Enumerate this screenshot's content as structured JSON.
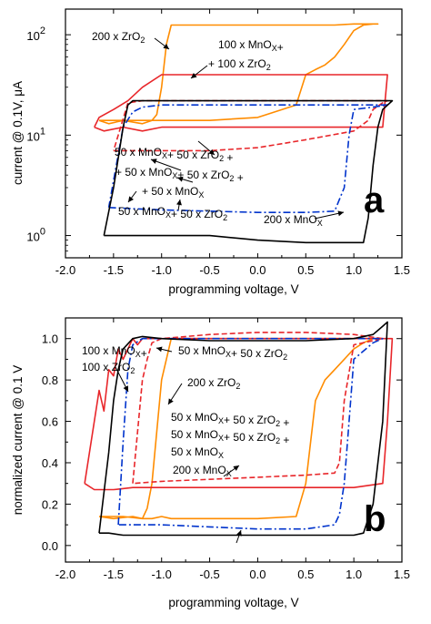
{
  "chart_data": [
    {
      "type": "line",
      "panel_label": "a",
      "xlabel": "programming voltage, V",
      "ylabel": "current @ 0.1V, μA",
      "xlim": [
        -2.0,
        1.5
      ],
      "ylim": [
        0.6,
        180
      ],
      "yscale": "log",
      "x_tick_labels": [
        "-2.0",
        "-1.5",
        "-1.0",
        "-0.5",
        "0.0",
        "0.5",
        "1.0",
        "1.5"
      ],
      "x_ticks": [
        -2.0,
        -1.5,
        -1.0,
        -0.5,
        0.0,
        0.5,
        1.0,
        1.5
      ],
      "y_tick_labels": [
        {
          "base": "10",
          "exp": "0"
        },
        {
          "base": "10",
          "exp": "1"
        },
        {
          "base": "10",
          "exp": "2"
        }
      ],
      "y_ticks": [
        1,
        10,
        100
      ],
      "series": [
        {
          "color": "#ff8c00",
          "style": "solid",
          "x": [
            -1.65,
            -1.55,
            -1.4,
            -1.2,
            -1.1,
            -1.05,
            -1.0,
            -0.95,
            -0.9,
            -0.5,
            0.0,
            0.3,
            0.45,
            0.5,
            0.55,
            0.6,
            0.8,
            1.0,
            1.2,
            1.25,
            1.2,
            1.1,
            1.0,
            0.9,
            0.8,
            0.7,
            0.6,
            0.5,
            0.4,
            0.0,
            -0.5,
            -0.9,
            -1.0,
            -1.1,
            -1.3,
            -1.55,
            -1.65
          ],
          "y": [
            14,
            13,
            14,
            13,
            14,
            16,
            30,
            80,
            125,
            125,
            125,
            125,
            125,
            125,
            125,
            125,
            125,
            128,
            128,
            128,
            128,
            125,
            110,
            80,
            60,
            50,
            45,
            40,
            20,
            15,
            14,
            14,
            14,
            14,
            14,
            14,
            14
          ]
        },
        {
          "color": "#e8262a",
          "style": "solid",
          "x": [
            -1.7,
            -1.6,
            -1.4,
            -1.2,
            -1.0,
            -0.5,
            0.0,
            0.5,
            1.0,
            1.3,
            1.35,
            1.3,
            1.0,
            0.5,
            0.4,
            0.2,
            0.0,
            -0.5,
            -1.0,
            -1.2,
            -1.35,
            -1.5,
            -1.65,
            -1.7
          ],
          "y": [
            12,
            11,
            12,
            11,
            12,
            12,
            12,
            12,
            12,
            12,
            40,
            40,
            40,
            40,
            40,
            40,
            40,
            40,
            40,
            30,
            22,
            18,
            15,
            12
          ]
        },
        {
          "color": "#e8262a",
          "style": "dashed",
          "x": [
            -1.5,
            -1.3,
            -1.0,
            -0.5,
            0.0,
            0.5,
            1.0,
            1.15,
            1.2,
            1.3,
            1.35,
            1.0,
            0.5,
            0.0,
            -0.5,
            -1.0,
            -1.2,
            -1.35,
            -1.5
          ],
          "y": [
            7,
            7,
            7,
            7,
            7.5,
            9,
            11,
            14,
            18,
            21,
            22,
            22,
            22,
            22,
            22,
            22,
            22,
            21,
            7
          ]
        },
        {
          "color": "#0033cc",
          "style": "dashdot",
          "x": [
            -1.55,
            -1.3,
            -1.0,
            -0.5,
            0.0,
            0.5,
            0.8,
            0.9,
            0.95,
            1.0,
            1.2,
            1.35,
            1.0,
            0.5,
            0.0,
            -0.5,
            -1.0,
            -1.2,
            -1.3,
            -1.4,
            -1.55
          ],
          "y": [
            1.9,
            1.85,
            1.8,
            1.75,
            1.7,
            1.7,
            1.75,
            3,
            10,
            18,
            19,
            20,
            20,
            20,
            20,
            20,
            20,
            19,
            17,
            12,
            1.9
          ]
        },
        {
          "color": "#000000",
          "style": "solid",
          "x": [
            -1.6,
            -1.5,
            -1.4,
            -1.3,
            -1.2,
            -1.0,
            -0.5,
            0.0,
            0.5,
            1.0,
            1.1,
            1.15,
            1.2,
            1.25,
            1.3,
            1.4,
            1.2,
            1.0,
            0.5,
            0.0,
            -0.5,
            -1.0,
            -1.2,
            -1.3,
            -1.35,
            -1.4,
            -1.5,
            -1.6
          ],
          "y": [
            1.0,
            1.0,
            1.0,
            1.0,
            1.0,
            1.0,
            1.0,
            0.9,
            0.85,
            0.85,
            0.85,
            1.5,
            5,
            12,
            18,
            22,
            22,
            22,
            22,
            22,
            22,
            22,
            22,
            22,
            20,
            12,
            3,
            1.0
          ]
        }
      ],
      "annotations": [
        {
          "parts": [
            {
              "t": "200 x ZrO"
            },
            {
              "t": "2",
              "sub": true
            }
          ],
          "text": "200 x ZrO2"
        },
        {
          "parts": [
            {
              "t": "100 x MnO"
            },
            {
              "t": "X",
              "sub": true
            },
            {
              "t": "+"
            }
          ],
          "text": "100 x MnOX+"
        },
        {
          "parts": [
            {
              "t": "+ 100 x ZrO"
            },
            {
              "t": "2",
              "sub": true
            }
          ],
          "text": "+ 100 x ZrO2"
        },
        {
          "parts": [
            {
              "t": "50 x MnO"
            },
            {
              "t": "X",
              "sub": true
            },
            {
              "t": "+ 50 x ZrO"
            },
            {
              "t": "2",
              "sub": true
            },
            {
              "t": " +"
            }
          ],
          "text": "50 x MnOX+ 50 x ZrO2 +"
        },
        {
          "parts": [
            {
              "t": "+ 50 x MnO"
            },
            {
              "t": "X",
              "sub": true
            },
            {
              "t": "+ 50 x ZrO"
            },
            {
              "t": "2",
              "sub": true
            },
            {
              "t": " +"
            }
          ],
          "text": "+ 50 x MnOX+ 50 x ZrO2 +"
        },
        {
          "parts": [
            {
              "t": "+ 50 x MnO"
            },
            {
              "t": "X",
              "sub": true
            }
          ],
          "text": "+ 50 x MnOX"
        },
        {
          "parts": [
            {
              "t": "50 x MnO"
            },
            {
              "t": "X",
              "sub": true
            },
            {
              "t": "+ 50 x ZrO"
            },
            {
              "t": "2",
              "sub": true
            }
          ],
          "text": "50 x MnOX+ 50 x ZrO2"
        },
        {
          "parts": [
            {
              "t": "200 x MnO"
            },
            {
              "t": "X",
              "sub": true
            }
          ],
          "text": "200 x MnOX"
        }
      ]
    },
    {
      "type": "line",
      "panel_label": "b",
      "xlabel": "programming voltage, V",
      "ylabel": "normalized current @ 0.1 V",
      "xlim": [
        -2.0,
        1.5
      ],
      "ylim": [
        -0.08,
        1.1
      ],
      "yscale": "linear",
      "x_tick_labels": [
        "-2.0",
        "-1.5",
        "-1.0",
        "-0.5",
        "0.0",
        "0.5",
        "1.0",
        "1.5"
      ],
      "x_ticks": [
        -2.0,
        -1.5,
        -1.0,
        -0.5,
        0.0,
        0.5,
        1.0,
        1.5
      ],
      "y_tick_labels": [
        "0.0",
        "0.2",
        "0.4",
        "0.6",
        "0.8",
        "1.0"
      ],
      "y_ticks": [
        0.0,
        0.2,
        0.4,
        0.6,
        0.8,
        1.0
      ],
      "series": [
        {
          "color": "#ff8c00",
          "style": "solid",
          "x": [
            -1.65,
            -1.5,
            -1.3,
            -1.2,
            -1.15,
            -1.1,
            -1.05,
            -1.0,
            -0.9,
            -0.5,
            0.0,
            0.3,
            0.45,
            0.5,
            0.55,
            0.6,
            0.8,
            1.0,
            1.2,
            1.3,
            1.2,
            1.1,
            1.0,
            0.9,
            0.8,
            0.7,
            0.6,
            0.5,
            0.4,
            0.0,
            -0.5,
            -0.9,
            -1.0,
            -1.1,
            -1.2,
            -1.4,
            -1.65
          ],
          "y": [
            0.14,
            0.13,
            0.14,
            0.13,
            0.18,
            0.3,
            0.55,
            0.8,
            1.0,
            1.0,
            1.0,
            1.0,
            1.0,
            1.0,
            1.0,
            1.0,
            1.0,
            1.0,
            1.0,
            1.0,
            1.0,
            0.98,
            0.95,
            0.9,
            0.85,
            0.8,
            0.7,
            0.3,
            0.14,
            0.13,
            0.13,
            0.13,
            0.14,
            0.13,
            0.13,
            0.14,
            0.14
          ]
        },
        {
          "color": "#e8262a",
          "style": "solid",
          "x": [
            -1.8,
            -1.7,
            -1.65,
            -1.6,
            -1.55,
            -1.5,
            -1.45,
            -1.4,
            -1.3,
            -1.25,
            -1.2,
            -1.0,
            -0.5,
            0.0,
            0.5,
            1.0,
            1.2,
            1.3,
            1.4,
            1.35,
            1.3,
            1.0,
            0.5,
            0.0,
            -0.5,
            -1.0,
            -1.2,
            -1.3,
            -1.5,
            -1.7,
            -1.8
          ],
          "y": [
            0.3,
            0.6,
            0.75,
            0.65,
            0.85,
            0.82,
            0.95,
            0.9,
            1.0,
            0.97,
            1.0,
            1.0,
            1.0,
            1.0,
            1.0,
            1.0,
            1.0,
            1.0,
            1.0,
            0.6,
            0.3,
            0.28,
            0.28,
            0.28,
            0.28,
            0.28,
            0.28,
            0.28,
            0.27,
            0.27,
            0.3
          ]
        },
        {
          "color": "#e8262a",
          "style": "dashed",
          "x": [
            -1.3,
            -1.2,
            -1.15,
            -1.1,
            -1.0,
            -0.5,
            0.0,
            0.5,
            1.0,
            1.3,
            1.0,
            0.9,
            0.85,
            0.8,
            0.5,
            0.0,
            -0.5,
            -1.0,
            -1.3
          ],
          "y": [
            0.3,
            0.8,
            0.9,
            0.98,
            1.0,
            1.02,
            1.03,
            1.03,
            1.02,
            1.0,
            0.97,
            0.7,
            0.4,
            0.35,
            0.34,
            0.33,
            0.32,
            0.31,
            0.3
          ]
        },
        {
          "color": "#0033cc",
          "style": "dashdot",
          "x": [
            -1.45,
            -1.4,
            -1.35,
            -1.3,
            -1.2,
            -1.0,
            -0.5,
            0.0,
            0.5,
            1.0,
            1.3,
            1.2,
            1.0,
            0.95,
            0.9,
            0.85,
            0.8,
            0.5,
            0.0,
            -0.5,
            -1.0,
            -1.3,
            -1.45
          ],
          "y": [
            0.1,
            0.5,
            0.85,
            0.97,
            1.0,
            1.0,
            1.0,
            1.0,
            1.0,
            1.0,
            1.0,
            0.98,
            0.9,
            0.6,
            0.3,
            0.15,
            0.1,
            0.08,
            0.08,
            0.09,
            0.1,
            0.1,
            0.1
          ]
        },
        {
          "color": "#000000",
          "style": "solid",
          "x": [
            -1.65,
            -1.55,
            -1.5,
            -1.45,
            -1.4,
            -1.3,
            -1.2,
            -1.0,
            -0.5,
            0.0,
            0.5,
            1.0,
            1.2,
            1.3,
            1.35,
            1.3,
            1.2,
            1.1,
            1.0,
            0.5,
            0.0,
            -0.5,
            -1.0,
            -1.2,
            -1.4,
            -1.55,
            -1.65
          ],
          "y": [
            0.06,
            0.45,
            0.7,
            0.85,
            0.95,
            1.0,
            1.01,
            1.0,
            0.99,
            0.99,
            0.99,
            1.0,
            1.02,
            1.06,
            1.08,
            0.6,
            0.2,
            0.06,
            0.05,
            0.05,
            0.05,
            0.05,
            0.05,
            0.05,
            0.05,
            0.06,
            0.06
          ]
        }
      ],
      "annotations": [
        {
          "parts": [
            {
              "t": "100 x MnO"
            },
            {
              "t": "X",
              "sub": true
            },
            {
              "t": "+"
            }
          ],
          "text": "100 x MnOX+"
        },
        {
          "parts": [
            {
              "t": "100 x ZrO"
            },
            {
              "t": "2",
              "sub": true
            }
          ],
          "text": "100 x ZrO2"
        },
        {
          "parts": [
            {
              "t": "50 x MnO"
            },
            {
              "t": "X",
              "sub": true
            },
            {
              "t": "+ 50 x ZrO"
            },
            {
              "t": "2",
              "sub": true
            }
          ],
          "text": "50 x MnOX+ 50 x ZrO2"
        },
        {
          "parts": [
            {
              "t": "200 x ZrO"
            },
            {
              "t": "2",
              "sub": true
            }
          ],
          "text": "200 x ZrO2"
        },
        {
          "parts": [
            {
              "t": "50 x MnO"
            },
            {
              "t": "X",
              "sub": true
            },
            {
              "t": "+ 50 x ZrO"
            },
            {
              "t": "2",
              "sub": true
            },
            {
              "t": " +"
            }
          ],
          "text": "50 x MnOX+ 50 x ZrO2 +"
        },
        {
          "parts": [
            {
              "t": "50 x MnO"
            },
            {
              "t": "X",
              "sub": true
            },
            {
              "t": "+ 50 x ZrO"
            },
            {
              "t": "2",
              "sub": true
            },
            {
              "t": " +"
            }
          ],
          "text": "50 x MnOX+ 50 x ZrO2 +"
        },
        {
          "parts": [
            {
              "t": "50 x MnO"
            },
            {
              "t": "X",
              "sub": true
            }
          ],
          "text": "50 x MnOX"
        },
        {
          "parts": [
            {
              "t": "200 x MnO"
            },
            {
              "t": "X",
              "sub": true
            }
          ],
          "text": "200 x MnOX"
        }
      ]
    }
  ]
}
